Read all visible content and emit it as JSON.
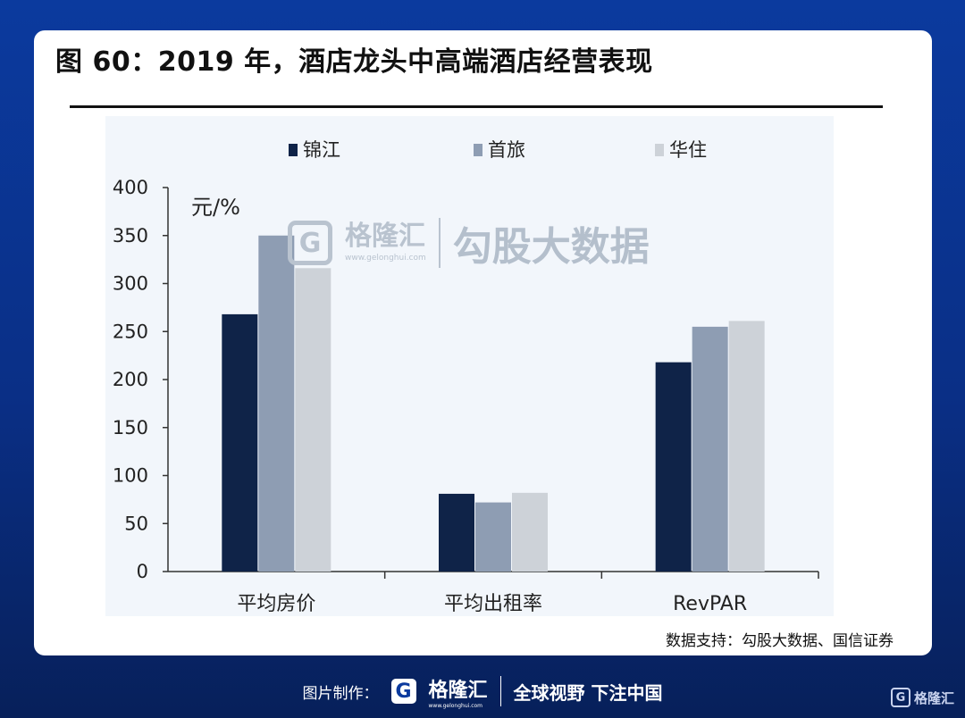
{
  "title": "图 60：2019 年，酒店龙头中高端酒店经营表现",
  "source": "数据支持：勾股大数据、国信证券",
  "footer": {
    "made_by": "图片制作：",
    "brand_letter": "G",
    "brand_name": "格隆汇",
    "brand_url": "www.gelonghui.com",
    "slogan": "全球视野 下注中国"
  },
  "watermark": {
    "brand_letter": "G",
    "brand_name": "格隆汇",
    "brand_url": "www.gelonghui.com",
    "text": "勾股大数据"
  },
  "corner_logo": {
    "letter": "G",
    "name": "格隆汇"
  },
  "chart_data": {
    "type": "bar",
    "categories": [
      "平均房价",
      "平均出租率",
      "RevPAR"
    ],
    "series": [
      {
        "name": "锦江",
        "values": [
          268,
          81,
          218
        ],
        "color": "#0f2348"
      },
      {
        "name": "首旅",
        "values": [
          350,
          72,
          255
        ],
        "color": "#8e9db3"
      },
      {
        "name": "华住",
        "values": [
          316,
          82,
          261
        ],
        "color": "#cdd2d8"
      }
    ],
    "ylabel": "元/%",
    "ylim": [
      0,
      400
    ],
    "yticks": [
      0,
      50,
      100,
      150,
      200,
      250,
      300,
      350,
      400
    ],
    "grid": false,
    "legend": "top"
  }
}
